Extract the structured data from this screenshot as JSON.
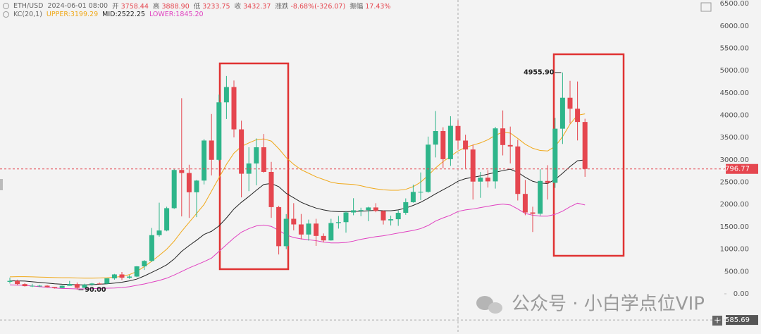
{
  "chart_data": {
    "type": "candlestick",
    "header": {
      "symbol": "ETH/USD",
      "time": "2024-06-01 08:00",
      "fields": [
        {
          "label": "开",
          "value": "3758.44"
        },
        {
          "label": "高",
          "value": "3888.90"
        },
        {
          "label": "低",
          "value": "3233.75"
        },
        {
          "label": "收",
          "value": "3432.37"
        },
        {
          "label": "涨跌",
          "value": "-8.68%(-326.07)"
        },
        {
          "label": "振幅",
          "value": "17.43%"
        }
      ]
    },
    "indicator": "KC(20,1)",
    "up_color": "#2eb58a",
    "down_color": "#e5464f",
    "open": [
      268,
      290,
      218,
      172,
      180,
      182,
      152,
      130,
      180,
      218,
      133,
      206,
      231,
      226,
      346,
      434,
      360,
      386,
      615,
      737,
      1314,
      1418,
      1918,
      2773,
      2706,
      2274,
      2536,
      3433,
      3001,
      4288,
      4631,
      3683,
      2689,
      2919,
      3282,
      2730,
      1942,
      1067,
      1680,
      1554,
      1328,
      1573,
      1296,
      1196,
      1585,
      1605,
      1822,
      1870,
      1874,
      1934,
      1856,
      1645,
      1671,
      1814,
      2052,
      2282,
      2283,
      3341,
      3645,
      3015,
      3758.44,
      3432,
      3232,
      2513,
      2602,
      2518,
      3705,
      3332,
      3300,
      2237,
      1822,
      1793,
      2528,
      2486,
      3698,
      4391,
      4145,
      3848
    ],
    "high": [
      363,
      317,
      239,
      224,
      198,
      193,
      154,
      185,
      289,
      253,
      227,
      245,
      253,
      349,
      446,
      488,
      420,
      622,
      755,
      1475,
      2041,
      1950,
      2797,
      4380,
      2891,
      2551,
      3466,
      4027,
      4460,
      4878,
      4778,
      3877,
      3282,
      3480,
      3579,
      2955,
      1970,
      1785,
      2030,
      1788,
      1663,
      1680,
      1352,
      1680,
      1743,
      1857,
      2141,
      1928,
      1950,
      2029,
      1870,
      1750,
      1865,
      2137,
      2445,
      2717,
      3521,
      4093,
      3730,
      3977,
      3888.9,
      3563,
      3341,
      2730,
      2772,
      3740,
      4107,
      3745,
      3450,
      2550,
      1950,
      2790,
      2880,
      3940,
      4955.9,
      4770,
      4755,
      3920
    ],
    "low": [
      231,
      190,
      162,
      152,
      153,
      139,
      117,
      127,
      179,
      90,
      130,
      180,
      215,
      221,
      316,
      308,
      336,
      371,
      534,
      715,
      1280,
      1400,
      1900,
      1733,
      1700,
      1718,
      2450,
      2651,
      2972,
      3915,
      3503,
      2160,
      2300,
      2430,
      2713,
      1700,
      881,
      1000,
      1422,
      1220,
      1191,
      1073,
      1150,
      1190,
      1461,
      1370,
      1760,
      1738,
      1625,
      1827,
      1551,
      1531,
      1522,
      1770,
      2040,
      2100,
      2264,
      3055,
      2812,
      2865,
      3233.75,
      2810,
      2111,
      2150,
      2380,
      2357,
      3100,
      2920,
      2090,
      1760,
      1385,
      1752,
      2111,
      2373,
      3356,
      3815,
      3435,
      2620
    ],
    "close": [
      290,
      218,
      172,
      180,
      182,
      152,
      130,
      180,
      218,
      133,
      206,
      231,
      226,
      346,
      434,
      360,
      386,
      615,
      737,
      1314,
      1418,
      1918,
      2773,
      2706,
      2274,
      2536,
      3433,
      3001,
      4288,
      4631,
      3683,
      2689,
      2919,
      3282,
      2730,
      1942,
      1067,
      1680,
      1554,
      1328,
      1573,
      1296,
      1196,
      1585,
      1605,
      1822,
      1870,
      1874,
      1934,
      1856,
      1645,
      1671,
      1814,
      2052,
      2282,
      2283,
      3341,
      3645,
      3015,
      3762,
      3432.37,
      3232,
      2513,
      2602,
      2518,
      3705,
      3332,
      3300,
      2237,
      1822,
      1793,
      2528,
      2486,
      3698,
      4391,
      4145,
      3848,
      2796.77
    ],
    "series": [
      {
        "name": "UPPER:3199.29",
        "color": "#f0a818",
        "values": [
          380,
          385,
          385,
          380,
          375,
          370,
          365,
          360,
          360,
          355,
          350,
          350,
          355,
          360,
          370,
          390,
          430,
          500,
          610,
          730,
          860,
          1000,
          1180,
          1400,
          1600,
          1800,
          2000,
          2300,
          2600,
          2900,
          3150,
          3300,
          3380,
          3450,
          3470,
          3420,
          3250,
          3050,
          2900,
          2780,
          2700,
          2620,
          2560,
          2500,
          2470,
          2460,
          2450,
          2420,
          2380,
          2350,
          2330,
          2320,
          2320,
          2340,
          2400,
          2500,
          2650,
          2820,
          2960,
          3080,
          3199,
          3280,
          3330,
          3380,
          3450,
          3550,
          3620,
          3600,
          3480,
          3350,
          3260,
          3210,
          3200,
          3300,
          3520,
          3800,
          4000,
          4030
        ]
      },
      {
        "name": "MID:2522.25",
        "color": "#222222",
        "values": [
          290,
          290,
          285,
          270,
          255,
          240,
          225,
          215,
          210,
          200,
          200,
          205,
          215,
          225,
          240,
          260,
          290,
          330,
          400,
          480,
          560,
          650,
          780,
          950,
          1080,
          1200,
          1330,
          1400,
          1520,
          1700,
          1900,
          2050,
          2180,
          2320,
          2450,
          2470,
          2400,
          2250,
          2150,
          2050,
          1980,
          1920,
          1880,
          1850,
          1840,
          1840,
          1845,
          1850,
          1860,
          1870,
          1860,
          1860,
          1880,
          1920,
          1980,
          2050,
          2140,
          2240,
          2330,
          2420,
          2522,
          2580,
          2610,
          2640,
          2680,
          2720,
          2760,
          2790,
          2720,
          2610,
          2520,
          2480,
          2470,
          2560,
          2700,
          2850,
          2980,
          3000
        ]
      },
      {
        "name": "LOWER:1845.20",
        "color": "#e040c0",
        "values": [
          200,
          195,
          190,
          175,
          160,
          145,
          130,
          120,
          115,
          110,
          110,
          115,
          120,
          125,
          130,
          140,
          160,
          190,
          220,
          260,
          300,
          350,
          420,
          500,
          580,
          650,
          720,
          800,
          950,
          1100,
          1250,
          1380,
          1460,
          1520,
          1540,
          1510,
          1420,
          1320,
          1260,
          1230,
          1210,
          1190,
          1160,
          1140,
          1140,
          1150,
          1180,
          1220,
          1250,
          1280,
          1300,
          1330,
          1360,
          1390,
          1420,
          1460,
          1530,
          1630,
          1700,
          1760,
          1845,
          1880,
          1900,
          1930,
          1960,
          1990,
          2010,
          1990,
          1900,
          1800,
          1760,
          1740,
          1740,
          1780,
          1850,
          1950,
          2030,
          1990
        ]
      }
    ],
    "annotations": {
      "high": "4955.90",
      "low": "90.00"
    },
    "last_price": 2796.77,
    "last_price_color": "#e5464f",
    "crosshair_value": -585.69,
    "ylim": [
      -900,
      6580
    ],
    "yticks": [
      {
        "value": 6500,
        "label": "6500.00"
      },
      {
        "value": 6000,
        "label": "6000.00"
      },
      {
        "value": 5500,
        "label": "5500.00"
      },
      {
        "value": 5000,
        "label": "5000.00"
      },
      {
        "value": 4500,
        "label": "4500.00"
      },
      {
        "value": 4000,
        "label": "4000.00"
      },
      {
        "value": 3500,
        "label": "3500.00"
      },
      {
        "value": 3000,
        "label": "3000.00"
      },
      {
        "value": 2500,
        "label": "2500.00"
      },
      {
        "value": 2000,
        "label": "2000.00"
      },
      {
        "value": 1500,
        "label": "1500.00"
      },
      {
        "value": 1000,
        "label": "1000.00"
      },
      {
        "value": 500,
        "label": "500.00"
      },
      {
        "value": 0,
        "label": "0.00"
      }
    ],
    "watermark": "公众号 · 小白学点位VIP"
  }
}
